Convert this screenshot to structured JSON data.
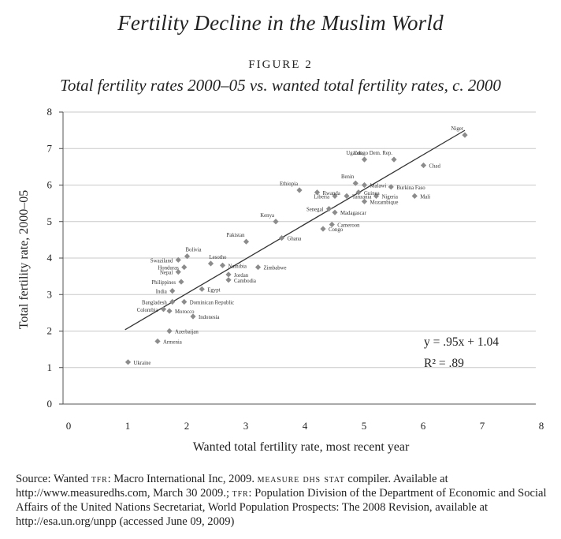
{
  "title": "Fertility Decline in the Muslim World",
  "figure_label": "FIGURE 2",
  "subtitle": "Total fertility rates 2000–05 vs. wanted total fertility rates, c. 2000",
  "source": {
    "part1": "Source: Wanted ",
    "tfr1": "tfr",
    "part2": ": Macro International Inc, 2009. ",
    "measure": "measure dhs stat",
    "part3": " compiler. Available at http://www.measuredhs.com, March 30 2009.; ",
    "tfr2": "tfr",
    "part4": ": Population Division of the Department of Economic and Social Affairs of the United Nations Secretariat, World Population Prospects: The 2008 Revision, available at http://esa.un.org/unpp (accessed June 09, 2009)"
  },
  "chart_data": {
    "type": "scatter",
    "xlabel": "Wanted total fertility rate, most recent year",
    "ylabel": "Total fertility rate, 2000–05",
    "xlim": [
      0,
      8
    ],
    "ylim": [
      0,
      8
    ],
    "xticks": [
      "0",
      "1",
      "2",
      "3",
      "4",
      "5",
      "6",
      "7",
      "8"
    ],
    "yticks": [
      "0",
      "1",
      "2",
      "3",
      "4",
      "5",
      "6",
      "7",
      "8"
    ],
    "grid": "horizontal",
    "marker_color": "#8c8c8c",
    "line_color": "#333333",
    "trendline": {
      "slope": 0.95,
      "intercept": 1.04,
      "x_range": [
        1.05,
        6.8
      ]
    },
    "annotations": {
      "equation": "y = .95x + 1.04",
      "r_squared": "R² = .89"
    },
    "points": [
      {
        "label": "Niger",
        "x": 6.8,
        "y": 7.37
      },
      {
        "label": "Congo Dem. Rep.",
        "x": 5.6,
        "y": 6.7
      },
      {
        "label": "Uganda",
        "x": 5.1,
        "y": 6.7
      },
      {
        "label": "Chad",
        "x": 6.1,
        "y": 6.54
      },
      {
        "label": "Benin",
        "x": 4.95,
        "y": 6.05
      },
      {
        "label": "Malawi",
        "x": 5.1,
        "y": 6.0
      },
      {
        "label": "Burkina Faso",
        "x": 5.55,
        "y": 5.95
      },
      {
        "label": "Ethiopia",
        "x": 4.0,
        "y": 5.86
      },
      {
        "label": "Rwanda",
        "x": 4.3,
        "y": 5.8
      },
      {
        "label": "Guinea",
        "x": 5.0,
        "y": 5.8
      },
      {
        "label": "Liberia",
        "x": 4.6,
        "y": 5.7
      },
      {
        "label": "Tanzania",
        "x": 4.8,
        "y": 5.7
      },
      {
        "label": "Nigeria",
        "x": 5.3,
        "y": 5.7
      },
      {
        "label": "Mali",
        "x": 5.95,
        "y": 5.7
      },
      {
        "label": "Mozambique",
        "x": 5.1,
        "y": 5.55
      },
      {
        "label": "Senegal",
        "x": 4.5,
        "y": 5.35
      },
      {
        "label": "Madagascar",
        "x": 4.6,
        "y": 5.25
      },
      {
        "label": "Kenya",
        "x": 3.6,
        "y": 5.0
      },
      {
        "label": "Cameroon",
        "x": 4.55,
        "y": 4.92
      },
      {
        "label": "Congo",
        "x": 4.4,
        "y": 4.8
      },
      {
        "label": "Ghana",
        "x": 3.7,
        "y": 4.55
      },
      {
        "label": "Pakistan",
        "x": 3.1,
        "y": 4.45
      },
      {
        "label": "Bolivia",
        "x": 2.1,
        "y": 4.05
      },
      {
        "label": "Swaziland",
        "x": 1.95,
        "y": 3.95
      },
      {
        "label": "Lesotho",
        "x": 2.5,
        "y": 3.85
      },
      {
        "label": "Honduras",
        "x": 2.05,
        "y": 3.75
      },
      {
        "label": "Namibia",
        "x": 2.7,
        "y": 3.8
      },
      {
        "label": "Zimbabwe",
        "x": 3.3,
        "y": 3.75
      },
      {
        "label": "Nepal",
        "x": 1.95,
        "y": 3.62
      },
      {
        "label": "Jordan",
        "x": 2.8,
        "y": 3.55
      },
      {
        "label": "Cambodia",
        "x": 2.8,
        "y": 3.4
      },
      {
        "label": "Philippines",
        "x": 2.0,
        "y": 3.35
      },
      {
        "label": "Egypt",
        "x": 2.35,
        "y": 3.15
      },
      {
        "label": "India",
        "x": 1.85,
        "y": 3.1
      },
      {
        "label": "Bangladesh",
        "x": 1.85,
        "y": 2.8
      },
      {
        "label": "Dominican Republic",
        "x": 2.05,
        "y": 2.8
      },
      {
        "label": "Colombia",
        "x": 1.7,
        "y": 2.6
      },
      {
        "label": "Morocco",
        "x": 1.8,
        "y": 2.55
      },
      {
        "label": "Indonesia",
        "x": 2.2,
        "y": 2.4
      },
      {
        "label": "Azerbaijan",
        "x": 1.8,
        "y": 2.0
      },
      {
        "label": "Armenia",
        "x": 1.6,
        "y": 1.72
      },
      {
        "label": "Ukraine",
        "x": 1.1,
        "y": 1.15
      }
    ]
  }
}
